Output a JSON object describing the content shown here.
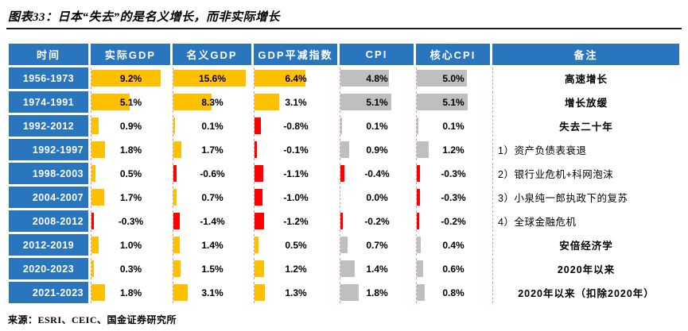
{
  "title": "图表33：日本“失去”的是名义增长，而非实际增长",
  "source": "来源：ESRI、CEIC、国金证券研究所",
  "colors": {
    "header_blue": "#2976BF",
    "time_column_blue": "#2976BF",
    "bar_orange": "#FFC000",
    "bar_gray": "#BFBFBF",
    "bar_red": "#FF0000",
    "dashed_line": "#E59999",
    "divider_black": "#1A1A1A"
  },
  "chart_data": {
    "type": "table",
    "title": "日本“失去”的是名义增长，而非实际增长",
    "columns": [
      "时间",
      "实际GDP",
      "名义GDP",
      "GDP平减指数",
      "CPI",
      "核心CPI",
      "备注"
    ],
    "value_unit": "%",
    "bar_columns": {
      "orange_databar_columns": [
        "实际GDP",
        "名义GDP",
        "GDP平减指数"
      ],
      "gray_databar_columns": [
        "CPI",
        "核心CPI"
      ],
      "negative_bar_color": "red"
    },
    "rows": [
      {
        "time": "1956-1973",
        "indent": false,
        "values": [
          9.2,
          15.6,
          6.4,
          4.8,
          5.0
        ],
        "note": "高速增长",
        "note_plain": false
      },
      {
        "time": "1974-1991",
        "indent": false,
        "values": [
          5.1,
          8.3,
          3.1,
          5.1,
          5.1
        ],
        "note": "增长放缓",
        "note_plain": false
      },
      {
        "time": "1992-2012",
        "indent": false,
        "values": [
          0.9,
          0.1,
          -0.8,
          0.1,
          0.1
        ],
        "note": "失去二十年",
        "note_plain": false
      },
      {
        "time": "1992-1997",
        "indent": true,
        "values": [
          1.8,
          1.7,
          -0.1,
          0.9,
          1.2
        ],
        "note": "1）资产负债表衰退",
        "note_plain": true
      },
      {
        "time": "1998-2003",
        "indent": true,
        "values": [
          0.5,
          -0.6,
          -1.1,
          -0.4,
          -0.3
        ],
        "note": "2）银行业危机+科网泡沫",
        "note_plain": true
      },
      {
        "time": "2004-2007",
        "indent": true,
        "values": [
          1.7,
          0.7,
          -1.0,
          0.0,
          -0.3
        ],
        "note": "3）小泉纯一郎执政下的复苏",
        "note_plain": true
      },
      {
        "time": "2008-2012",
        "indent": true,
        "values": [
          -0.3,
          -1.4,
          -1.2,
          -0.2,
          -0.2
        ],
        "note": "4）全球金融危机",
        "note_plain": true
      },
      {
        "time": "2012-2019",
        "indent": false,
        "values": [
          1.0,
          1.4,
          0.5,
          0.7,
          0.4
        ],
        "note": "安倍经济学",
        "note_plain": false
      },
      {
        "time": "2020-2023",
        "indent": false,
        "values": [
          0.3,
          1.5,
          1.2,
          1.4,
          0.6
        ],
        "note": "2020年以来",
        "note_plain": false
      },
      {
        "time": "2021-2023",
        "indent": true,
        "values": [
          1.8,
          3.1,
          1.3,
          1.8,
          0.8
        ],
        "note": "2020年以来（扣除2020年）",
        "note_plain": false
      }
    ]
  }
}
